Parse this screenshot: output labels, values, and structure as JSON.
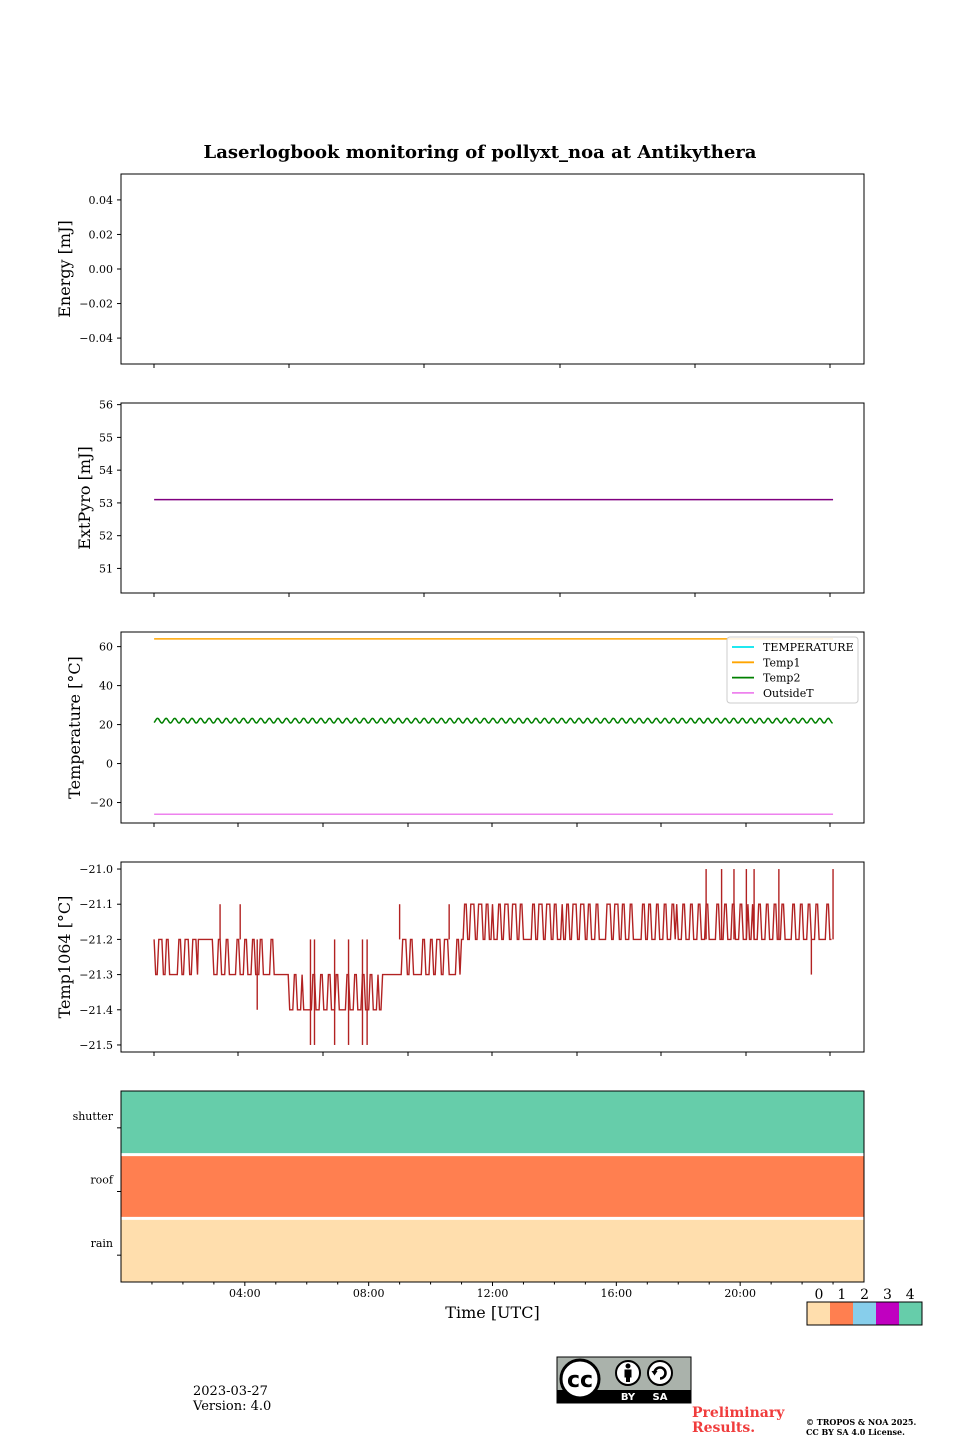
{
  "title": "Laserlogbook monitoring of pollyxt_noa at Antikythera",
  "chart_data": [
    {
      "type": "line",
      "ylabel": "Energy [mJ]",
      "ylim": [
        -0.055,
        0.055
      ],
      "yticks": [
        0.04,
        0.02,
        0.0,
        -0.02,
        -0.04
      ],
      "ytick_labels": [
        "0.04",
        "0.02",
        "0.00",
        "−0.02",
        "−0.04"
      ],
      "xlim": [
        0,
        24
      ],
      "series": []
    },
    {
      "type": "line",
      "ylabel": "ExtPyro [mJ]",
      "ylim": [
        50.25,
        56.05
      ],
      "yticks": [
        56,
        55,
        54,
        53,
        52,
        51
      ],
      "ytick_labels": [
        "56",
        "55",
        "54",
        "53",
        "52",
        "51"
      ],
      "xlim": [
        0,
        24
      ],
      "series": [
        {
          "color": "#800080",
          "x_range": [
            1.07,
            23.0
          ],
          "value": 53.1
        }
      ]
    },
    {
      "type": "line",
      "ylabel": "Temperature [°C]",
      "ylim": [
        -30.5,
        67.5
      ],
      "yticks": [
        60,
        40,
        20,
        0,
        -20
      ],
      "ytick_labels": [
        "60",
        "40",
        "20",
        "0",
        "−20"
      ],
      "xlim": [
        0,
        24
      ],
      "legend": {
        "placement": "upper-right",
        "entries": [
          "TEMPERATURE",
          "Temp1",
          "Temp2",
          "OutsideT"
        ]
      },
      "series": [
        {
          "name": "TEMPERATURE",
          "color": "#00e5ee",
          "x_range": [
            1.07,
            23.0
          ],
          "value": null
        },
        {
          "name": "Temp1",
          "color": "#ffa500",
          "x_range": [
            1.07,
            23.0
          ],
          "value": 64
        },
        {
          "name": "Temp2",
          "color": "#008000",
          "x_range": [
            1.07,
            23.0
          ],
          "value": 22,
          "oscillation": 1.2
        },
        {
          "name": "OutsideT",
          "color": "#ee82ee",
          "x_range": [
            1.07,
            23.0
          ],
          "value": -26
        }
      ]
    },
    {
      "type": "line",
      "ylabel": "Temp1064 [°C]",
      "ylim": [
        -21.52,
        -20.98
      ],
      "yticks": [
        -21.0,
        -21.1,
        -21.2,
        -21.3,
        -21.4,
        -21.5
      ],
      "ytick_labels": [
        "−21.0",
        "−21.1",
        "−21.2",
        "−21.3",
        "−21.4",
        "−21.5"
      ],
      "xlim": [
        0,
        24
      ],
      "series": [
        {
          "color": "#b22222",
          "segments": [
            {
              "x0": 1.07,
              "x1": 2.5,
              "lo": -21.3,
              "hi": -21.2
            },
            {
              "x0": 2.5,
              "x1": 2.9,
              "lo": -21.2,
              "hi": -21.2
            },
            {
              "x0": 2.9,
              "x1": 5.0,
              "lo": -21.3,
              "hi": -21.2
            },
            {
              "x0": 5.0,
              "x1": 5.4,
              "lo": -21.3,
              "hi": -21.3
            },
            {
              "x0": 5.4,
              "x1": 6.3,
              "lo": -21.4,
              "hi": -21.3
            },
            {
              "x0": 6.3,
              "x1": 8.5,
              "lo": -21.4,
              "hi": -21.3
            },
            {
              "x0": 8.5,
              "x1": 9.0,
              "lo": -21.3,
              "hi": -21.3
            },
            {
              "x0": 9.0,
              "x1": 11.0,
              "lo": -21.3,
              "hi": -21.2
            },
            {
              "x0": 11.0,
              "x1": 18.2,
              "lo": -21.2,
              "hi": -21.1
            },
            {
              "x0": 18.2,
              "x1": 23.0,
              "lo": -21.2,
              "hi": -21.1
            }
          ],
          "spikes": [
            {
              "x": 3.2,
              "y": -21.1
            },
            {
              "x": 3.85,
              "y": -21.1
            },
            {
              "x": 4.4,
              "y": -21.4
            },
            {
              "x": 5.3,
              "y": -21.2
            },
            {
              "x": 6.12,
              "y": -21.5
            },
            {
              "x": 6.25,
              "y": -21.5
            },
            {
              "x": 6.9,
              "y": -21.5
            },
            {
              "x": 7.35,
              "y": -21.5
            },
            {
              "x": 7.8,
              "y": -21.5
            },
            {
              "x": 7.95,
              "y": -21.5
            },
            {
              "x": 9.0,
              "y": -21.1
            },
            {
              "x": 10.6,
              "y": -21.1
            },
            {
              "x": 18.9,
              "y": -21.0
            },
            {
              "x": 19.4,
              "y": -21.0
            },
            {
              "x": 19.8,
              "y": -21.0
            },
            {
              "x": 20.2,
              "y": -21.0
            },
            {
              "x": 20.45,
              "y": -21.0
            },
            {
              "x": 21.25,
              "y": -21.0
            },
            {
              "x": 22.3,
              "y": -21.3
            },
            {
              "x": 23.0,
              "y": -21.0
            }
          ]
        }
      ]
    },
    {
      "type": "heatmap",
      "xlabel": "Time [UTC]",
      "xlim": [
        0,
        24
      ],
      "xticks": [
        4,
        8,
        12,
        16,
        20
      ],
      "xtick_labels": [
        "04:00",
        "08:00",
        "12:00",
        "16:00",
        "20:00"
      ],
      "rows": [
        {
          "label": "shutter",
          "state": 4
        },
        {
          "label": "roof",
          "state": 1
        },
        {
          "label": "rain",
          "state": 0
        }
      ],
      "colorbar": {
        "labels": [
          "0",
          "1",
          "2",
          "3",
          "4"
        ],
        "colors": [
          "#ffdead",
          "#ff7f50",
          "#87ceeb",
          "#c000c0",
          "#66cdaa"
        ]
      }
    }
  ],
  "footer": {
    "date": "2023-03-27",
    "version": "Version: 4.0",
    "preliminary_line1": "Preliminary",
    "preliminary_line2": "Results.",
    "copyright_line1": "© TROPOS & NOA 2025.",
    "copyright_line2": "CC BY SA 4.0 License.",
    "license_by": "BY",
    "license_sa": "SA",
    "license_cc": "cc"
  }
}
